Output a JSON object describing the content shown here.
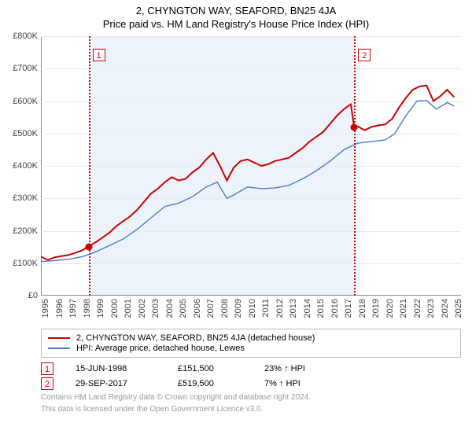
{
  "title": "2, CHYNGTON WAY, SEAFORD, BN25 4JA",
  "subtitle": "Price paid vs. HM Land Registry's House Price Index (HPI)",
  "chart": {
    "type": "line",
    "background_color": "#ffffff",
    "grid_color": "#eaeaea",
    "shade_color": "#edf3fb",
    "y": {
      "min": 0,
      "max": 800000,
      "step": 100000,
      "prefix": "£",
      "suffix": "K",
      "divisor": 1000
    },
    "x": {
      "min": 1995,
      "max": 2025.5,
      "labels": [
        1995,
        1996,
        1997,
        1998,
        1999,
        2000,
        2001,
        2002,
        2003,
        2004,
        2005,
        2006,
        2007,
        2008,
        2009,
        2010,
        2011,
        2012,
        2013,
        2014,
        2015,
        2016,
        2017,
        2018,
        2019,
        2020,
        2021,
        2022,
        2023,
        2024,
        2025
      ]
    },
    "series": [
      {
        "name": "2, CHYNGTON WAY, SEAFORD, BN25 4JA (detached house)",
        "color": "#cc0000",
        "width": 2,
        "data": [
          [
            1995,
            120000
          ],
          [
            1995.5,
            110000
          ],
          [
            1996,
            118000
          ],
          [
            1996.5,
            122000
          ],
          [
            1997,
            125000
          ],
          [
            1997.5,
            132000
          ],
          [
            1998,
            140000
          ],
          [
            1998.46,
            151500
          ],
          [
            1999,
            165000
          ],
          [
            1999.5,
            180000
          ],
          [
            2000,
            195000
          ],
          [
            2000.5,
            215000
          ],
          [
            2001,
            230000
          ],
          [
            2001.5,
            245000
          ],
          [
            2002,
            265000
          ],
          [
            2002.5,
            290000
          ],
          [
            2003,
            315000
          ],
          [
            2003.5,
            330000
          ],
          [
            2004,
            350000
          ],
          [
            2004.5,
            365000
          ],
          [
            2005,
            355000
          ],
          [
            2005.5,
            360000
          ],
          [
            2006,
            380000
          ],
          [
            2006.5,
            395000
          ],
          [
            2007,
            420000
          ],
          [
            2007.5,
            440000
          ],
          [
            2008,
            400000
          ],
          [
            2008.5,
            355000
          ],
          [
            2009,
            395000
          ],
          [
            2009.5,
            415000
          ],
          [
            2010,
            420000
          ],
          [
            2010.5,
            410000
          ],
          [
            2011,
            400000
          ],
          [
            2011.5,
            405000
          ],
          [
            2012,
            415000
          ],
          [
            2012.5,
            420000
          ],
          [
            2013,
            425000
          ],
          [
            2013.5,
            440000
          ],
          [
            2014,
            455000
          ],
          [
            2014.5,
            475000
          ],
          [
            2015,
            490000
          ],
          [
            2015.5,
            505000
          ],
          [
            2016,
            530000
          ],
          [
            2016.5,
            555000
          ],
          [
            2017,
            575000
          ],
          [
            2017.5,
            590000
          ],
          [
            2017.75,
            519500
          ],
          [
            2018,
            522000
          ],
          [
            2018.5,
            510000
          ],
          [
            2019,
            520000
          ],
          [
            2019.5,
            525000
          ],
          [
            2020,
            528000
          ],
          [
            2020.5,
            545000
          ],
          [
            2021,
            580000
          ],
          [
            2021.5,
            610000
          ],
          [
            2022,
            635000
          ],
          [
            2022.5,
            645000
          ],
          [
            2023,
            648000
          ],
          [
            2023.5,
            600000
          ],
          [
            2024,
            615000
          ],
          [
            2024.5,
            635000
          ],
          [
            2025,
            612000
          ]
        ]
      },
      {
        "name": "HPI: Average price, detached house, Lewes",
        "color": "#4a7bc8",
        "width": 1.4,
        "data": [
          [
            1995,
            105000
          ],
          [
            1996,
            108000
          ],
          [
            1997,
            112000
          ],
          [
            1998,
            120000
          ],
          [
            1999,
            135000
          ],
          [
            2000,
            155000
          ],
          [
            2001,
            175000
          ],
          [
            2002,
            205000
          ],
          [
            2003,
            240000
          ],
          [
            2004,
            275000
          ],
          [
            2005,
            285000
          ],
          [
            2006,
            305000
          ],
          [
            2007,
            335000
          ],
          [
            2007.8,
            350000
          ],
          [
            2008.5,
            300000
          ],
          [
            2009,
            310000
          ],
          [
            2010,
            335000
          ],
          [
            2011,
            330000
          ],
          [
            2012,
            332000
          ],
          [
            2013,
            340000
          ],
          [
            2014,
            360000
          ],
          [
            2015,
            385000
          ],
          [
            2016,
            415000
          ],
          [
            2017,
            450000
          ],
          [
            2018,
            470000
          ],
          [
            2019,
            475000
          ],
          [
            2020,
            480000
          ],
          [
            2020.7,
            500000
          ],
          [
            2021.5,
            555000
          ],
          [
            2022.3,
            600000
          ],
          [
            2023,
            602000
          ],
          [
            2023.7,
            575000
          ],
          [
            2024.5,
            595000
          ],
          [
            2025,
            585000
          ]
        ]
      }
    ],
    "markers": [
      {
        "idx": "1",
        "x": 1998.46,
        "y": 151500,
        "color": "#cc0000"
      },
      {
        "idx": "2",
        "x": 2017.75,
        "y": 519500,
        "color": "#cc0000"
      }
    ],
    "shade_range": [
      1998.46,
      2017.75
    ]
  },
  "transactions": [
    {
      "idx": "1",
      "date": "15-JUN-1998",
      "price": "£151,500",
      "delta": "23% ↑ HPI",
      "color": "#cc0000"
    },
    {
      "idx": "2",
      "date": "29-SEP-2017",
      "price": "£519,500",
      "delta": "7% ↑ HPI",
      "color": "#cc0000"
    }
  ],
  "footnote1": "Contains HM Land Registry data © Crown copyright and database right 2024.",
  "footnote2": "This data is licensed under the Open Government Licence v3.0."
}
